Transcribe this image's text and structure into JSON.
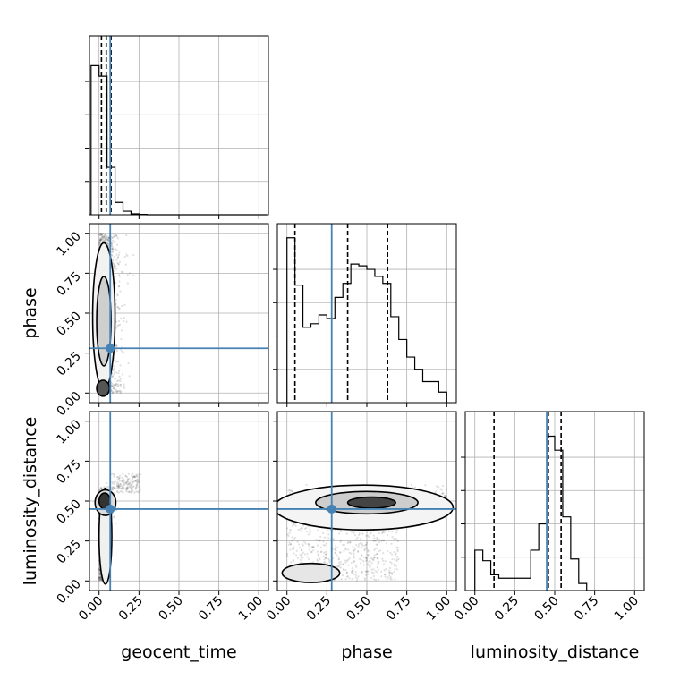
{
  "chart_data": {
    "type": "corner",
    "parameters": [
      "geocent_time",
      "phase",
      "luminosity_distance"
    ],
    "xlabels": [
      "geocent_time",
      "phase",
      "luminosity_distance"
    ],
    "ylabels": [
      "",
      "phase",
      "luminosity_distance"
    ],
    "tick_values": [
      0.0,
      0.25,
      0.5,
      0.75,
      1.0
    ],
    "tick_labels": [
      "0.00",
      "0.25",
      "0.50",
      "0.75",
      "1.00"
    ],
    "axis_range": [
      -0.06,
      1.06
    ],
    "grid": true,
    "truths": {
      "geocent_time": 0.07,
      "phase": 0.28,
      "luminosity_distance": 0.45
    },
    "truth_color": "#4682b4",
    "quantiles": {
      "geocent_time": [
        0.015,
        0.045,
        0.075
      ],
      "phase": [
        0.05,
        0.38,
        0.63
      ],
      "luminosity_distance": [
        0.12,
        0.46,
        0.54
      ]
    },
    "histograms": {
      "geocent_time": {
        "bins": [
          -0.05,
          0.0,
          0.05,
          0.1,
          0.15,
          0.2,
          0.25,
          0.3,
          1.05
        ],
        "counts": [
          0.85,
          0.79,
          0.27,
          0.07,
          0.02,
          0.005,
          0.002,
          0.0
        ]
      },
      "phase": {
        "bins": [
          0.0,
          0.05,
          0.1,
          0.15,
          0.2,
          0.25,
          0.3,
          0.35,
          0.4,
          0.45,
          0.5,
          0.55,
          0.6,
          0.65,
          0.7,
          0.75,
          0.8,
          0.85,
          0.9,
          0.95,
          1.0
        ],
        "counts": [
          0.94,
          0.67,
          0.43,
          0.45,
          0.5,
          0.48,
          0.6,
          0.68,
          0.79,
          0.78,
          0.76,
          0.72,
          0.68,
          0.49,
          0.36,
          0.26,
          0.19,
          0.12,
          0.12,
          0.06
        ]
      },
      "luminosity_distance": {
        "bins": [
          0.0,
          0.05,
          0.1,
          0.15,
          0.2,
          0.25,
          0.3,
          0.35,
          0.4,
          0.45,
          0.5,
          0.55,
          0.6,
          0.65,
          0.7,
          1.05
        ],
        "counts": [
          0.23,
          0.17,
          0.09,
          0.07,
          0.07,
          0.07,
          0.07,
          0.23,
          0.38,
          0.88,
          0.8,
          0.42,
          0.18,
          0.04,
          0.0
        ]
      }
    }
  }
}
